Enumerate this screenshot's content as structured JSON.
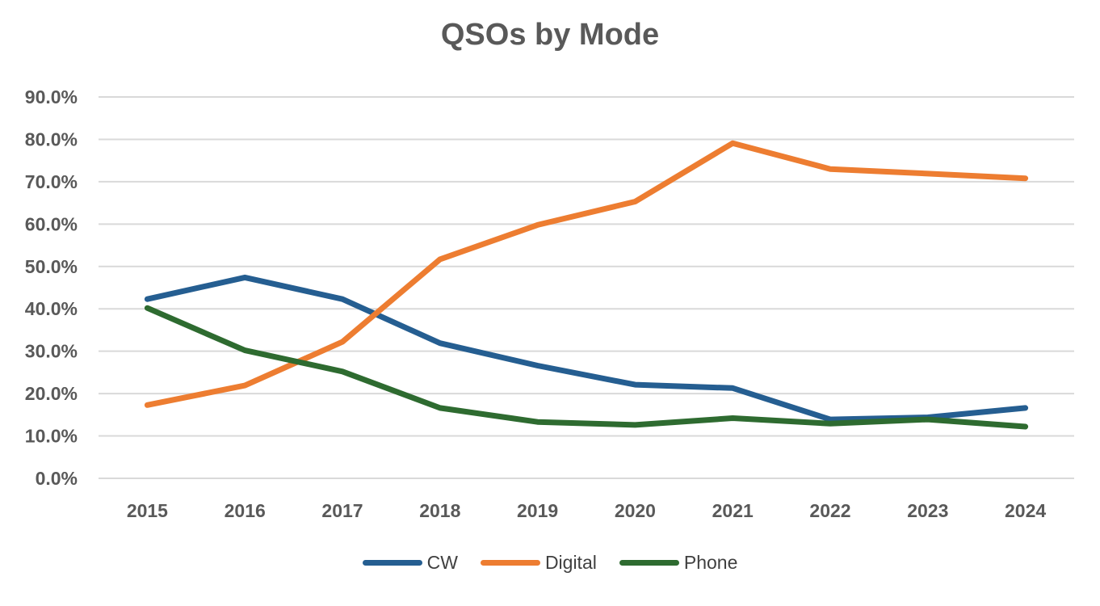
{
  "chart_data": {
    "type": "line",
    "title": "QSOs by Mode",
    "xlabel": "",
    "ylabel": "",
    "ylim": [
      0,
      90
    ],
    "ytick_values": [
      0,
      10,
      20,
      30,
      40,
      50,
      60,
      70,
      80,
      90
    ],
    "ytick_labels": [
      "0.0%",
      "10.0%",
      "20.0%",
      "30.0%",
      "40.0%",
      "50.0%",
      "60.0%",
      "70.0%",
      "80.0%",
      "90.0%"
    ],
    "categories": [
      "2015",
      "2016",
      "2017",
      "2018",
      "2019",
      "2020",
      "2021",
      "2022",
      "2023",
      "2024"
    ],
    "grid": true,
    "legend_position": "bottom",
    "series": [
      {
        "name": "CW",
        "color": "#255E91",
        "values": [
          42.3,
          47.4,
          42.3,
          31.9,
          26.6,
          22.1,
          21.3,
          13.9,
          14.4,
          16.6
        ]
      },
      {
        "name": "Digital",
        "color": "#ED7D31",
        "values": [
          17.3,
          21.9,
          32.2,
          51.7,
          59.8,
          65.3,
          79.1,
          73.0,
          71.9,
          70.8
        ]
      },
      {
        "name": "Phone",
        "color": "#2E6B30",
        "values": [
          40.2,
          30.2,
          25.2,
          16.6,
          13.3,
          12.6,
          14.2,
          12.9,
          13.9,
          12.2
        ]
      }
    ]
  }
}
